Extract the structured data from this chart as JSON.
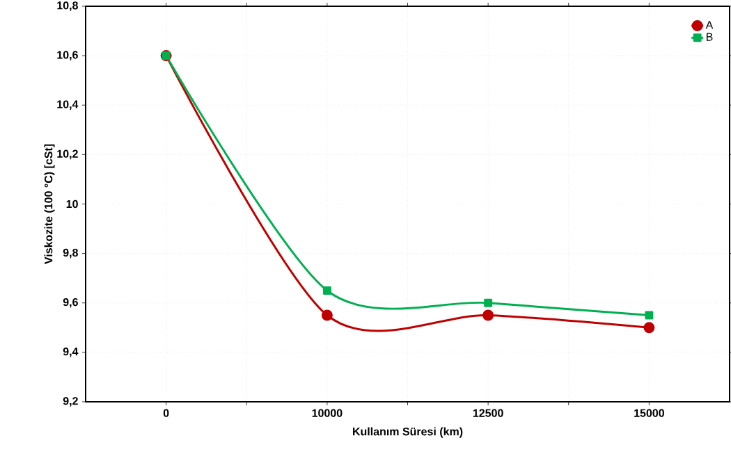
{
  "chart_data": {
    "type": "line",
    "xlabel": "Kullanım Süresi (km)",
    "ylabel": "Viskozite (100 °C) [cSt]",
    "categories": [
      "0",
      "10000",
      "12500",
      "15000"
    ],
    "series": [
      {
        "name": "A",
        "color": "#c00000",
        "marker": "circle",
        "values": [
          10.6,
          9.55,
          9.55,
          9.5
        ]
      },
      {
        "name": "B",
        "color": "#00b050",
        "marker": "square",
        "values": [
          10.6,
          9.65,
          9.6,
          9.55
        ]
      }
    ],
    "ylim": [
      9.2,
      10.8
    ],
    "yticks": [
      {
        "value": 9.2,
        "label": "9,2"
      },
      {
        "value": 9.4,
        "label": "9,4"
      },
      {
        "value": 9.6,
        "label": "9,6"
      },
      {
        "value": 9.8,
        "label": "9,8"
      },
      {
        "value": 10,
        "label": "10"
      },
      {
        "value": 10.2,
        "label": "10,2"
      },
      {
        "value": 10.4,
        "label": "10,4"
      },
      {
        "value": 10.6,
        "label": "10,6"
      },
      {
        "value": 10.8,
        "label": "10,8"
      }
    ],
    "grid": true,
    "legend": "top right",
    "line_style": "solid"
  }
}
